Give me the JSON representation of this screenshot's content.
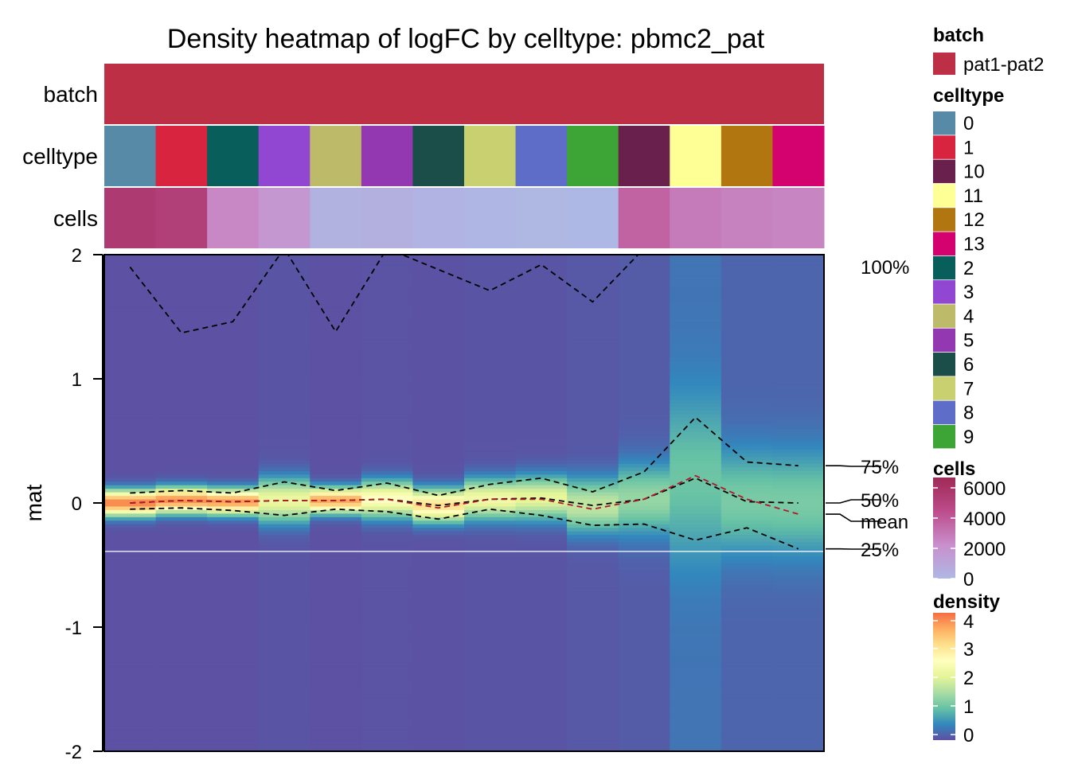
{
  "chart_data": {
    "type": "heatmap",
    "title": "Density heatmap of logFC by celltype: pbmc2_pat",
    "ylabel": "mat",
    "ylim": [
      -2,
      2
    ],
    "yticks": [
      2,
      1,
      0,
      -1,
      -2
    ],
    "columns": [
      "0",
      "1",
      "2",
      "3",
      "4",
      "5",
      "6",
      "7",
      "8",
      "9",
      "10",
      "11",
      "12",
      "13"
    ],
    "annotations": {
      "batch": {
        "label": "batch",
        "values": [
          "pat1-pat2"
        ]
      },
      "celltype": {
        "label": "celltype"
      },
      "cells": {
        "label": "cells",
        "values": [
          5000,
          4700,
          2200,
          1600,
          300,
          400,
          200,
          100,
          50,
          0,
          3300,
          2600,
          2400,
          2300
        ]
      }
    },
    "celltype_colors": {
      "0": "#568AA6",
      "1": "#D8243E",
      "2": "#075E5B",
      "3": "#9147D2",
      "4": "#BDBB69",
      "5": "#9438B1",
      "6": "#1B4E48",
      "7": "#C8D06F",
      "8": "#5E6DC7",
      "9": "#3DA535",
      "10": "#69204C",
      "11": "#FEFF95",
      "12": "#B1760F",
      "13": "#D4026E"
    },
    "batch_color": "#BD2F45",
    "series": [
      {
        "name": "100%",
        "values": [
          1.9,
          1.37,
          1.46,
          2.05,
          1.38,
          2.05,
          1.88,
          1.71,
          1.92,
          1.62,
          2.05,
          2.05,
          2.05,
          2.05
        ]
      },
      {
        "name": "75%",
        "values": [
          0.08,
          0.1,
          0.08,
          0.17,
          0.1,
          0.16,
          0.06,
          0.15,
          0.2,
          0.09,
          0.25,
          0.69,
          0.33,
          0.3
        ]
      },
      {
        "name": "50%",
        "values": [
          0.0,
          0.02,
          0.01,
          0.02,
          0.02,
          0.03,
          -0.02,
          0.03,
          0.04,
          -0.02,
          0.03,
          0.2,
          0.01,
          0.0
        ]
      },
      {
        "name": "mean",
        "values": [
          0.0,
          0.02,
          0.01,
          0.02,
          0.02,
          0.03,
          -0.04,
          0.03,
          0.03,
          -0.05,
          0.03,
          0.22,
          0.03,
          -0.09
        ]
      },
      {
        "name": "25%",
        "values": [
          -0.05,
          -0.04,
          -0.06,
          -0.1,
          -0.05,
          -0.07,
          -0.13,
          -0.05,
          -0.1,
          -0.18,
          -0.17,
          -0.3,
          -0.2,
          -0.37
        ]
      }
    ],
    "density_profiles": [
      {
        "sigma": 0.07,
        "peak": 4.0,
        "base": 0.02
      },
      {
        "sigma": 0.07,
        "peak": 3.9,
        "base": 0.02
      },
      {
        "sigma": 0.07,
        "peak": 3.8,
        "base": 0.02
      },
      {
        "sigma": 0.12,
        "peak": 2.2,
        "base": 0.05
      },
      {
        "sigma": 0.07,
        "peak": 3.7,
        "base": 0.02
      },
      {
        "sigma": 0.1,
        "peak": 2.6,
        "base": 0.04
      },
      {
        "sigma": 0.09,
        "peak": 3.1,
        "base": 0.03
      },
      {
        "sigma": 0.11,
        "peak": 2.3,
        "base": 0.05
      },
      {
        "sigma": 0.12,
        "peak": 2.1,
        "base": 0.05
      },
      {
        "sigma": 0.15,
        "peak": 1.7,
        "base": 0.08
      },
      {
        "sigma": 0.2,
        "peak": 1.3,
        "base": 0.12
      },
      {
        "sigma": 0.45,
        "peak": 0.75,
        "base": 0.35
      },
      {
        "sigma": 0.3,
        "peak": 1.0,
        "base": 0.2
      },
      {
        "sigma": 0.3,
        "peak": 1.0,
        "base": 0.2
      }
    ],
    "reference_line": -0.39,
    "quantile_labels": [
      {
        "label": "100%",
        "value": 2.0
      },
      {
        "label": "75%",
        "value": 0.3
      },
      {
        "label": "50%",
        "value": 0.0
      },
      {
        "label": "mean",
        "value": -0.09
      },
      {
        "label": "25%",
        "value": -0.37
      }
    ],
    "legends": {
      "batch": {
        "title": "batch",
        "items": [
          {
            "label": "pat1-pat2",
            "color": "#BD2F45"
          }
        ]
      },
      "celltype": {
        "title": "celltype",
        "items": [
          "0",
          "1",
          "10",
          "11",
          "12",
          "13",
          "2",
          "3",
          "4",
          "5",
          "6",
          "7",
          "8",
          "9"
        ]
      },
      "cells": {
        "title": "cells",
        "ticks": [
          "6000",
          "4000",
          "2000",
          "0"
        ],
        "range": [
          0,
          6000
        ],
        "colors": [
          "#9E2A56",
          "#BC4C8B",
          "#C98FCC",
          "#AEB8E4"
        ]
      },
      "density": {
        "title": "density",
        "ticks": [
          "4",
          "3",
          "2",
          "1",
          "0"
        ],
        "range": [
          0,
          4.2
        ],
        "colors": [
          "#F46D43",
          "#FDAE61",
          "#FEE08B",
          "#FFFFBF",
          "#E6F598",
          "#ABDDA4",
          "#66C2A5",
          "#3288BD",
          "#5E4FA2"
        ]
      }
    }
  }
}
